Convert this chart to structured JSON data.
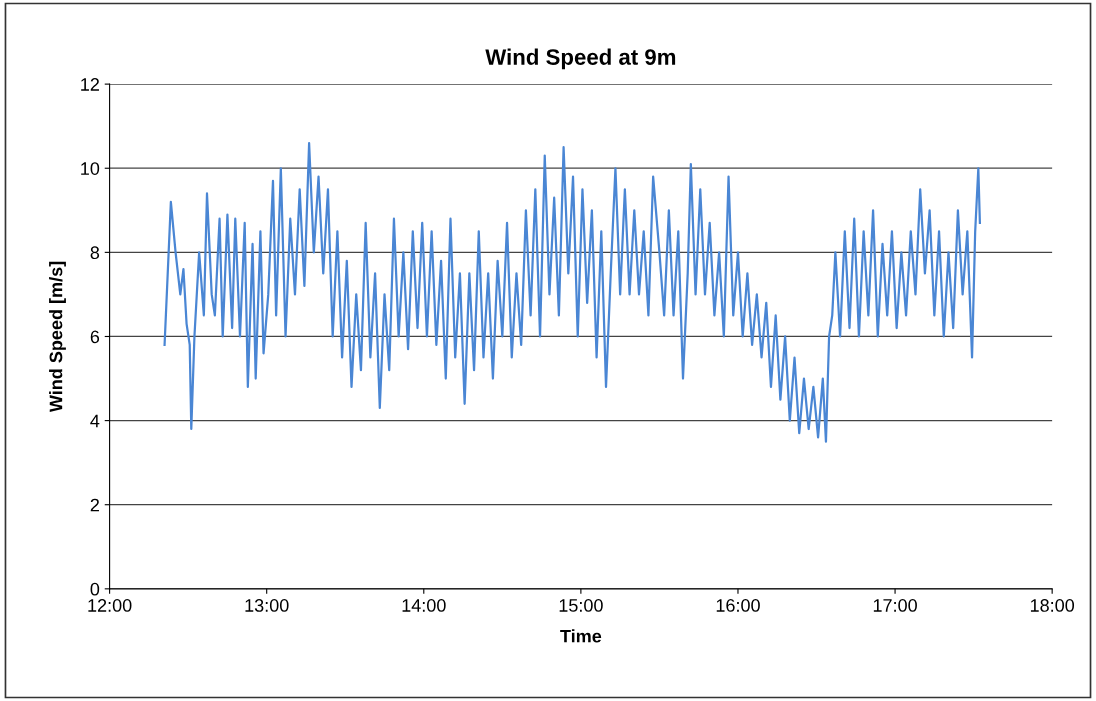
{
  "chart_data": {
    "type": "line",
    "title": "Wind Speed at 9m",
    "xlabel": "Time",
    "ylabel": "Wind Speed [m/s]",
    "xlim": [
      12,
      18
    ],
    "xticks": [
      {
        "value": 12,
        "label": "12:00"
      },
      {
        "value": 13,
        "label": "13:00"
      },
      {
        "value": 14,
        "label": "14:00"
      },
      {
        "value": 15,
        "label": "15:00"
      },
      {
        "value": 16,
        "label": "16:00"
      },
      {
        "value": 17,
        "label": "17:00"
      },
      {
        "value": 18,
        "label": "18:00"
      }
    ],
    "ylim": [
      0,
      12
    ],
    "yticks": [
      0,
      2,
      4,
      6,
      8,
      10,
      12
    ],
    "grid": "y",
    "legend": false,
    "marker": "none",
    "line_style": "solid",
    "x": [
      12.35,
      12.37,
      12.39,
      12.42,
      12.45,
      12.47,
      12.49,
      12.51,
      12.52,
      12.54,
      12.57,
      12.6,
      12.62,
      12.65,
      12.67,
      12.7,
      12.72,
      12.75,
      12.78,
      12.8,
      12.83,
      12.86,
      12.88,
      12.91,
      12.93,
      12.96,
      12.98,
      13.01,
      13.04,
      13.06,
      13.09,
      13.12,
      13.15,
      13.18,
      13.21,
      13.24,
      13.27,
      13.3,
      13.33,
      13.36,
      13.39,
      13.42,
      13.45,
      13.48,
      13.51,
      13.54,
      13.57,
      13.6,
      13.63,
      13.66,
      13.69,
      13.72,
      13.75,
      13.78,
      13.81,
      13.84,
      13.87,
      13.9,
      13.93,
      13.96,
      13.99,
      14.02,
      14.05,
      14.08,
      14.11,
      14.14,
      14.17,
      14.2,
      14.23,
      14.26,
      14.29,
      14.32,
      14.35,
      14.38,
      14.41,
      14.44,
      14.47,
      14.5,
      14.53,
      14.56,
      14.59,
      14.62,
      14.65,
      14.68,
      14.71,
      14.74,
      14.77,
      14.8,
      14.83,
      14.86,
      14.89,
      14.92,
      14.95,
      14.98,
      15.01,
      15.04,
      15.07,
      15.1,
      15.13,
      15.16,
      15.19,
      15.22,
      15.25,
      15.28,
      15.31,
      15.34,
      15.37,
      15.4,
      15.43,
      15.46,
      15.5,
      15.53,
      15.56,
      15.59,
      15.62,
      15.65,
      15.68,
      15.7,
      15.73,
      15.76,
      15.79,
      15.82,
      15.85,
      15.88,
      15.91,
      15.94,
      15.97,
      16.0,
      16.03,
      16.06,
      16.09,
      16.12,
      16.15,
      16.18,
      16.21,
      16.24,
      16.27,
      16.3,
      16.33,
      16.36,
      16.39,
      16.42,
      16.45,
      16.48,
      16.51,
      16.54,
      16.56,
      16.58,
      16.6,
      16.62,
      16.65,
      16.68,
      16.71,
      16.74,
      16.77,
      16.8,
      16.83,
      16.86,
      16.89,
      16.92,
      16.95,
      16.98,
      17.01,
      17.04,
      17.07,
      17.1,
      17.13,
      17.16,
      17.19,
      17.22,
      17.25,
      17.28,
      17.31,
      17.34,
      17.37,
      17.4,
      17.43,
      17.46,
      17.49,
      17.51,
      17.53,
      17.54
    ],
    "series": [
      {
        "color": "#4a86d4",
        "values": [
          5.8,
          7.5,
          9.2,
          8.0,
          7.0,
          7.6,
          6.3,
          5.8,
          3.8,
          6.0,
          8.0,
          6.5,
          9.4,
          7.0,
          6.5,
          8.8,
          6.0,
          8.9,
          6.2,
          8.8,
          6.0,
          8.7,
          4.8,
          8.2,
          5.0,
          8.5,
          5.6,
          7.0,
          9.7,
          6.5,
          10.0,
          6.0,
          8.8,
          7.0,
          9.5,
          7.2,
          10.6,
          8.0,
          9.8,
          7.5,
          9.5,
          6.0,
          8.5,
          5.5,
          7.8,
          4.8,
          7.0,
          5.2,
          8.7,
          5.5,
          7.5,
          4.3,
          7.0,
          5.2,
          8.8,
          6.0,
          8.0,
          5.7,
          8.5,
          6.2,
          8.7,
          6.0,
          8.5,
          5.8,
          7.8,
          5.0,
          8.8,
          5.5,
          7.5,
          4.4,
          7.5,
          5.2,
          8.5,
          5.5,
          7.5,
          5.0,
          7.8,
          6.0,
          8.7,
          5.5,
          7.5,
          5.8,
          9.0,
          6.5,
          9.5,
          6.0,
          10.3,
          7.0,
          9.3,
          6.5,
          10.5,
          7.5,
          9.8,
          6.0,
          9.5,
          6.8,
          9.0,
          5.5,
          8.5,
          4.8,
          7.5,
          10.0,
          7.0,
          9.5,
          7.0,
          9.0,
          7.0,
          8.5,
          6.5,
          9.8,
          8.0,
          6.5,
          9.0,
          6.5,
          8.5,
          5.0,
          7.5,
          10.1,
          7.0,
          9.5,
          7.0,
          8.7,
          6.5,
          8.0,
          6.0,
          9.8,
          6.5,
          8.0,
          6.0,
          7.5,
          5.8,
          7.0,
          5.5,
          6.8,
          4.8,
          6.5,
          4.5,
          6.0,
          4.0,
          5.5,
          3.7,
          5.0,
          3.8,
          4.8,
          3.6,
          5.0,
          3.5,
          6.0,
          6.5,
          8.0,
          6.0,
          8.5,
          6.2,
          8.8,
          6.0,
          8.5,
          6.5,
          9.0,
          6.0,
          8.2,
          6.5,
          8.5,
          6.2,
          8.0,
          6.5,
          8.5,
          7.0,
          9.5,
          7.5,
          9.0,
          6.5,
          8.5,
          6.0,
          8.0,
          6.2,
          9.0,
          7.0,
          8.5,
          5.5,
          8.5,
          10.0,
          8.7
        ]
      }
    ]
  }
}
